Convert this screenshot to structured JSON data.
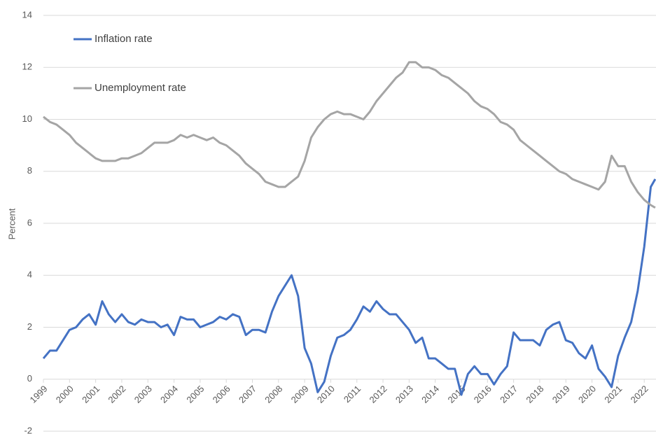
{
  "chart_data": {
    "type": "line",
    "y_label": "Percent",
    "x": [
      1999,
      1999.25,
      1999.5,
      1999.75,
      2000,
      2000.25,
      2000.5,
      2000.75,
      2001,
      2001.25,
      2001.5,
      2001.75,
      2002,
      2002.25,
      2002.5,
      2002.75,
      2003,
      2003.25,
      2003.5,
      2003.75,
      2004,
      2004.25,
      2004.5,
      2004.75,
      2005,
      2005.25,
      2005.5,
      2005.75,
      2006,
      2006.25,
      2006.5,
      2006.75,
      2007,
      2007.25,
      2007.5,
      2007.75,
      2008,
      2008.25,
      2008.5,
      2008.75,
      2009,
      2009.25,
      2009.5,
      2009.75,
      2010,
      2010.25,
      2010.5,
      2010.75,
      2011,
      2011.25,
      2011.5,
      2011.75,
      2012,
      2012.25,
      2012.5,
      2012.75,
      2013,
      2013.25,
      2013.5,
      2013.75,
      2014,
      2014.25,
      2014.5,
      2014.75,
      2015,
      2015.25,
      2015.5,
      2015.75,
      2016,
      2016.25,
      2016.5,
      2016.75,
      2017,
      2017.25,
      2017.5,
      2017.75,
      2018,
      2018.25,
      2018.5,
      2018.75,
      2019,
      2019.25,
      2019.5,
      2019.75,
      2020,
      2020.25,
      2020.5,
      2020.75,
      2021,
      2021.25,
      2021.5,
      2021.75,
      2022,
      2022.25,
      2022.42
    ],
    "series": [
      {
        "name": "Inflation rate",
        "color": "#4472c4",
        "values": [
          0.8,
          1.1,
          1.1,
          1.5,
          1.9,
          2.0,
          2.3,
          2.5,
          2.1,
          3.0,
          2.5,
          2.2,
          2.5,
          2.2,
          2.1,
          2.3,
          2.2,
          2.2,
          2.0,
          2.1,
          1.7,
          2.4,
          2.3,
          2.3,
          2.0,
          2.1,
          2.2,
          2.4,
          2.3,
          2.5,
          2.4,
          1.7,
          1.9,
          1.9,
          1.8,
          2.6,
          3.2,
          3.6,
          4.0,
          3.2,
          1.2,
          0.6,
          -0.5,
          -0.1,
          0.9,
          1.6,
          1.7,
          1.9,
          2.3,
          2.8,
          2.6,
          3.0,
          2.7,
          2.5,
          2.5,
          2.2,
          1.9,
          1.4,
          1.6,
          0.8,
          0.8,
          0.6,
          0.4,
          0.4,
          -0.6,
          0.2,
          0.5,
          0.2,
          0.2,
          -0.2,
          0.2,
          0.5,
          1.8,
          1.5,
          1.5,
          1.5,
          1.3,
          1.9,
          2.1,
          2.2,
          1.5,
          1.4,
          1.0,
          0.8,
          1.3,
          0.4,
          0.1,
          -0.3,
          0.9,
          1.6,
          2.2,
          3.4,
          5.1,
          7.4,
          7.7
        ]
      },
      {
        "name": "Unemployment rate",
        "color": "#a5a5a5",
        "values": [
          10.1,
          9.9,
          9.8,
          9.6,
          9.4,
          9.1,
          8.9,
          8.7,
          8.5,
          8.4,
          8.4,
          8.4,
          8.5,
          8.5,
          8.6,
          8.7,
          8.9,
          9.1,
          9.1,
          9.1,
          9.2,
          9.4,
          9.3,
          9.4,
          9.3,
          9.2,
          9.3,
          9.1,
          9.0,
          8.8,
          8.6,
          8.3,
          8.1,
          7.9,
          7.6,
          7.5,
          7.4,
          7.4,
          7.6,
          7.8,
          8.4,
          9.3,
          9.7,
          10.0,
          10.2,
          10.3,
          10.2,
          10.2,
          10.1,
          10.0,
          10.3,
          10.7,
          11.0,
          11.3,
          11.6,
          11.8,
          12.2,
          12.2,
          12.0,
          12.0,
          11.9,
          11.7,
          11.6,
          11.4,
          11.2,
          11.0,
          10.7,
          10.5,
          10.4,
          10.2,
          9.9,
          9.8,
          9.6,
          9.2,
          9.0,
          8.8,
          8.6,
          8.4,
          8.2,
          8.0,
          7.9,
          7.7,
          7.6,
          7.5,
          7.4,
          7.3,
          7.6,
          8.6,
          8.2,
          8.2,
          7.6,
          7.2,
          6.9,
          6.7,
          6.6
        ]
      }
    ],
    "xlim": [
      1999,
      2022.45
    ],
    "xticks": [
      1999,
      2000,
      2001,
      2002,
      2003,
      2004,
      2005,
      2006,
      2007,
      2008,
      2009,
      2010,
      2011,
      2012,
      2013,
      2014,
      2015,
      2016,
      2017,
      2018,
      2019,
      2020,
      2021,
      2022
    ],
    "ylim": [
      -2,
      14
    ],
    "yticks": [
      -2,
      0,
      2,
      4,
      6,
      8,
      10,
      12,
      14
    ],
    "grid": true,
    "legend": "top-left"
  }
}
